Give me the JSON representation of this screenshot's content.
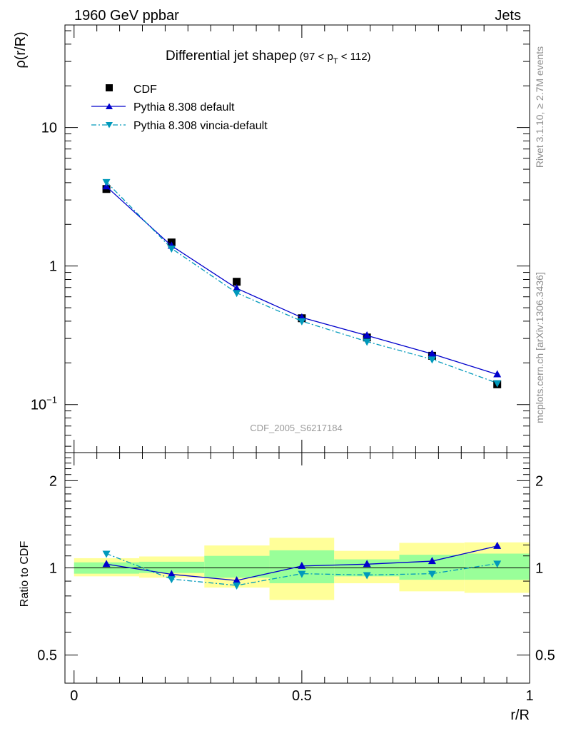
{
  "header": {
    "left": "1960 GeV ppbar",
    "right": "Jets"
  },
  "side_labels": {
    "rivet": "Rivet 3.1.10, ≥ 2.7M events",
    "mcplots": "mcplots.cern.ch [arXiv:1306.3436]"
  },
  "chart_data": [
    {
      "type": "line",
      "title_main": "Differential jet shapeρ",
      "title_sub": "(97 < p",
      "title_sub_index": "T",
      "title_sub_end": " < 112)",
      "watermark": "CDF_2005_S6217184",
      "ylabel": "ρ(r/R)",
      "yscale": "log",
      "ylim": [
        0.045,
        55
      ],
      "xlim": [
        -0.02,
        1.0
      ],
      "yticks": [
        {
          "value": 10,
          "label": "10"
        },
        {
          "value": 1,
          "label": "1"
        },
        {
          "value": 0.1,
          "label": "10−1"
        }
      ],
      "legend_position": "top-left",
      "x": [
        0.071,
        0.214,
        0.357,
        0.5,
        0.643,
        0.786,
        0.929
      ],
      "series": [
        {
          "name": "CDF",
          "marker": "square",
          "color": "#000000",
          "values": [
            3.6,
            1.48,
            0.77,
            0.42,
            0.305,
            0.225,
            0.14
          ]
        },
        {
          "name": "Pythia 8.308 default",
          "marker": "triangle-up",
          "color": "#0000cc",
          "line": "solid",
          "values": [
            3.75,
            1.4,
            0.69,
            0.425,
            0.315,
            0.232,
            0.165
          ]
        },
        {
          "name": "Pythia 8.308 vincia-default",
          "marker": "triangle-down",
          "color": "#0099bb",
          "line": "dashdot",
          "values": [
            4.05,
            1.34,
            0.64,
            0.4,
            0.285,
            0.212,
            0.143
          ]
        }
      ]
    },
    {
      "type": "line",
      "ylabel": "Ratio to CDF",
      "xlabel": "r/R",
      "yscale": "log",
      "ylim": [
        0.4,
        2.5
      ],
      "xlim": [
        -0.02,
        1.0
      ],
      "yticks": [
        {
          "value": 2,
          "label": "2"
        },
        {
          "value": 1,
          "label": "1"
        },
        {
          "value": 0.5,
          "label": "0.5"
        }
      ],
      "xticks": [
        {
          "value": 0,
          "label": "0"
        },
        {
          "value": 0.5,
          "label": "0.5"
        },
        {
          "value": 1,
          "label": "1"
        }
      ],
      "bands": [
        {
          "x0": 0.0,
          "x1": 0.143,
          "yellow": [
            0.935,
            1.08
          ],
          "green": [
            0.955,
            1.045
          ]
        },
        {
          "x0": 0.143,
          "x1": 0.286,
          "yellow": [
            0.925,
            1.095
          ],
          "green": [
            0.96,
            1.05
          ]
        },
        {
          "x0": 0.286,
          "x1": 0.429,
          "yellow": [
            0.855,
            1.195
          ],
          "green": [
            0.925,
            1.1
          ]
        },
        {
          "x0": 0.429,
          "x1": 0.571,
          "yellow": [
            0.775,
            1.27
          ],
          "green": [
            0.885,
            1.15
          ]
        },
        {
          "x0": 0.571,
          "x1": 0.714,
          "yellow": [
            0.885,
            1.145
          ],
          "green": [
            0.935,
            1.07
          ]
        },
        {
          "x0": 0.714,
          "x1": 0.857,
          "yellow": [
            0.83,
            1.22
          ],
          "green": [
            0.91,
            1.11
          ]
        },
        {
          "x0": 0.857,
          "x1": 1.0,
          "yellow": [
            0.82,
            1.225
          ],
          "green": [
            0.91,
            1.12
          ]
        }
      ],
      "x": [
        0.071,
        0.214,
        0.357,
        0.5,
        0.643,
        0.786,
        0.929
      ],
      "series": [
        {
          "name": "Pythia 8.308 default",
          "marker": "triangle-up",
          "color": "#0000cc",
          "line": "solid",
          "values": [
            1.03,
            0.95,
            0.905,
            1.015,
            1.03,
            1.055,
            1.19
          ]
        },
        {
          "name": "Pythia 8.308 vincia-default",
          "marker": "triangle-down",
          "color": "#0099bb",
          "line": "dashdot",
          "values": [
            1.12,
            0.915,
            0.87,
            0.955,
            0.945,
            0.955,
            1.035
          ]
        }
      ]
    }
  ]
}
